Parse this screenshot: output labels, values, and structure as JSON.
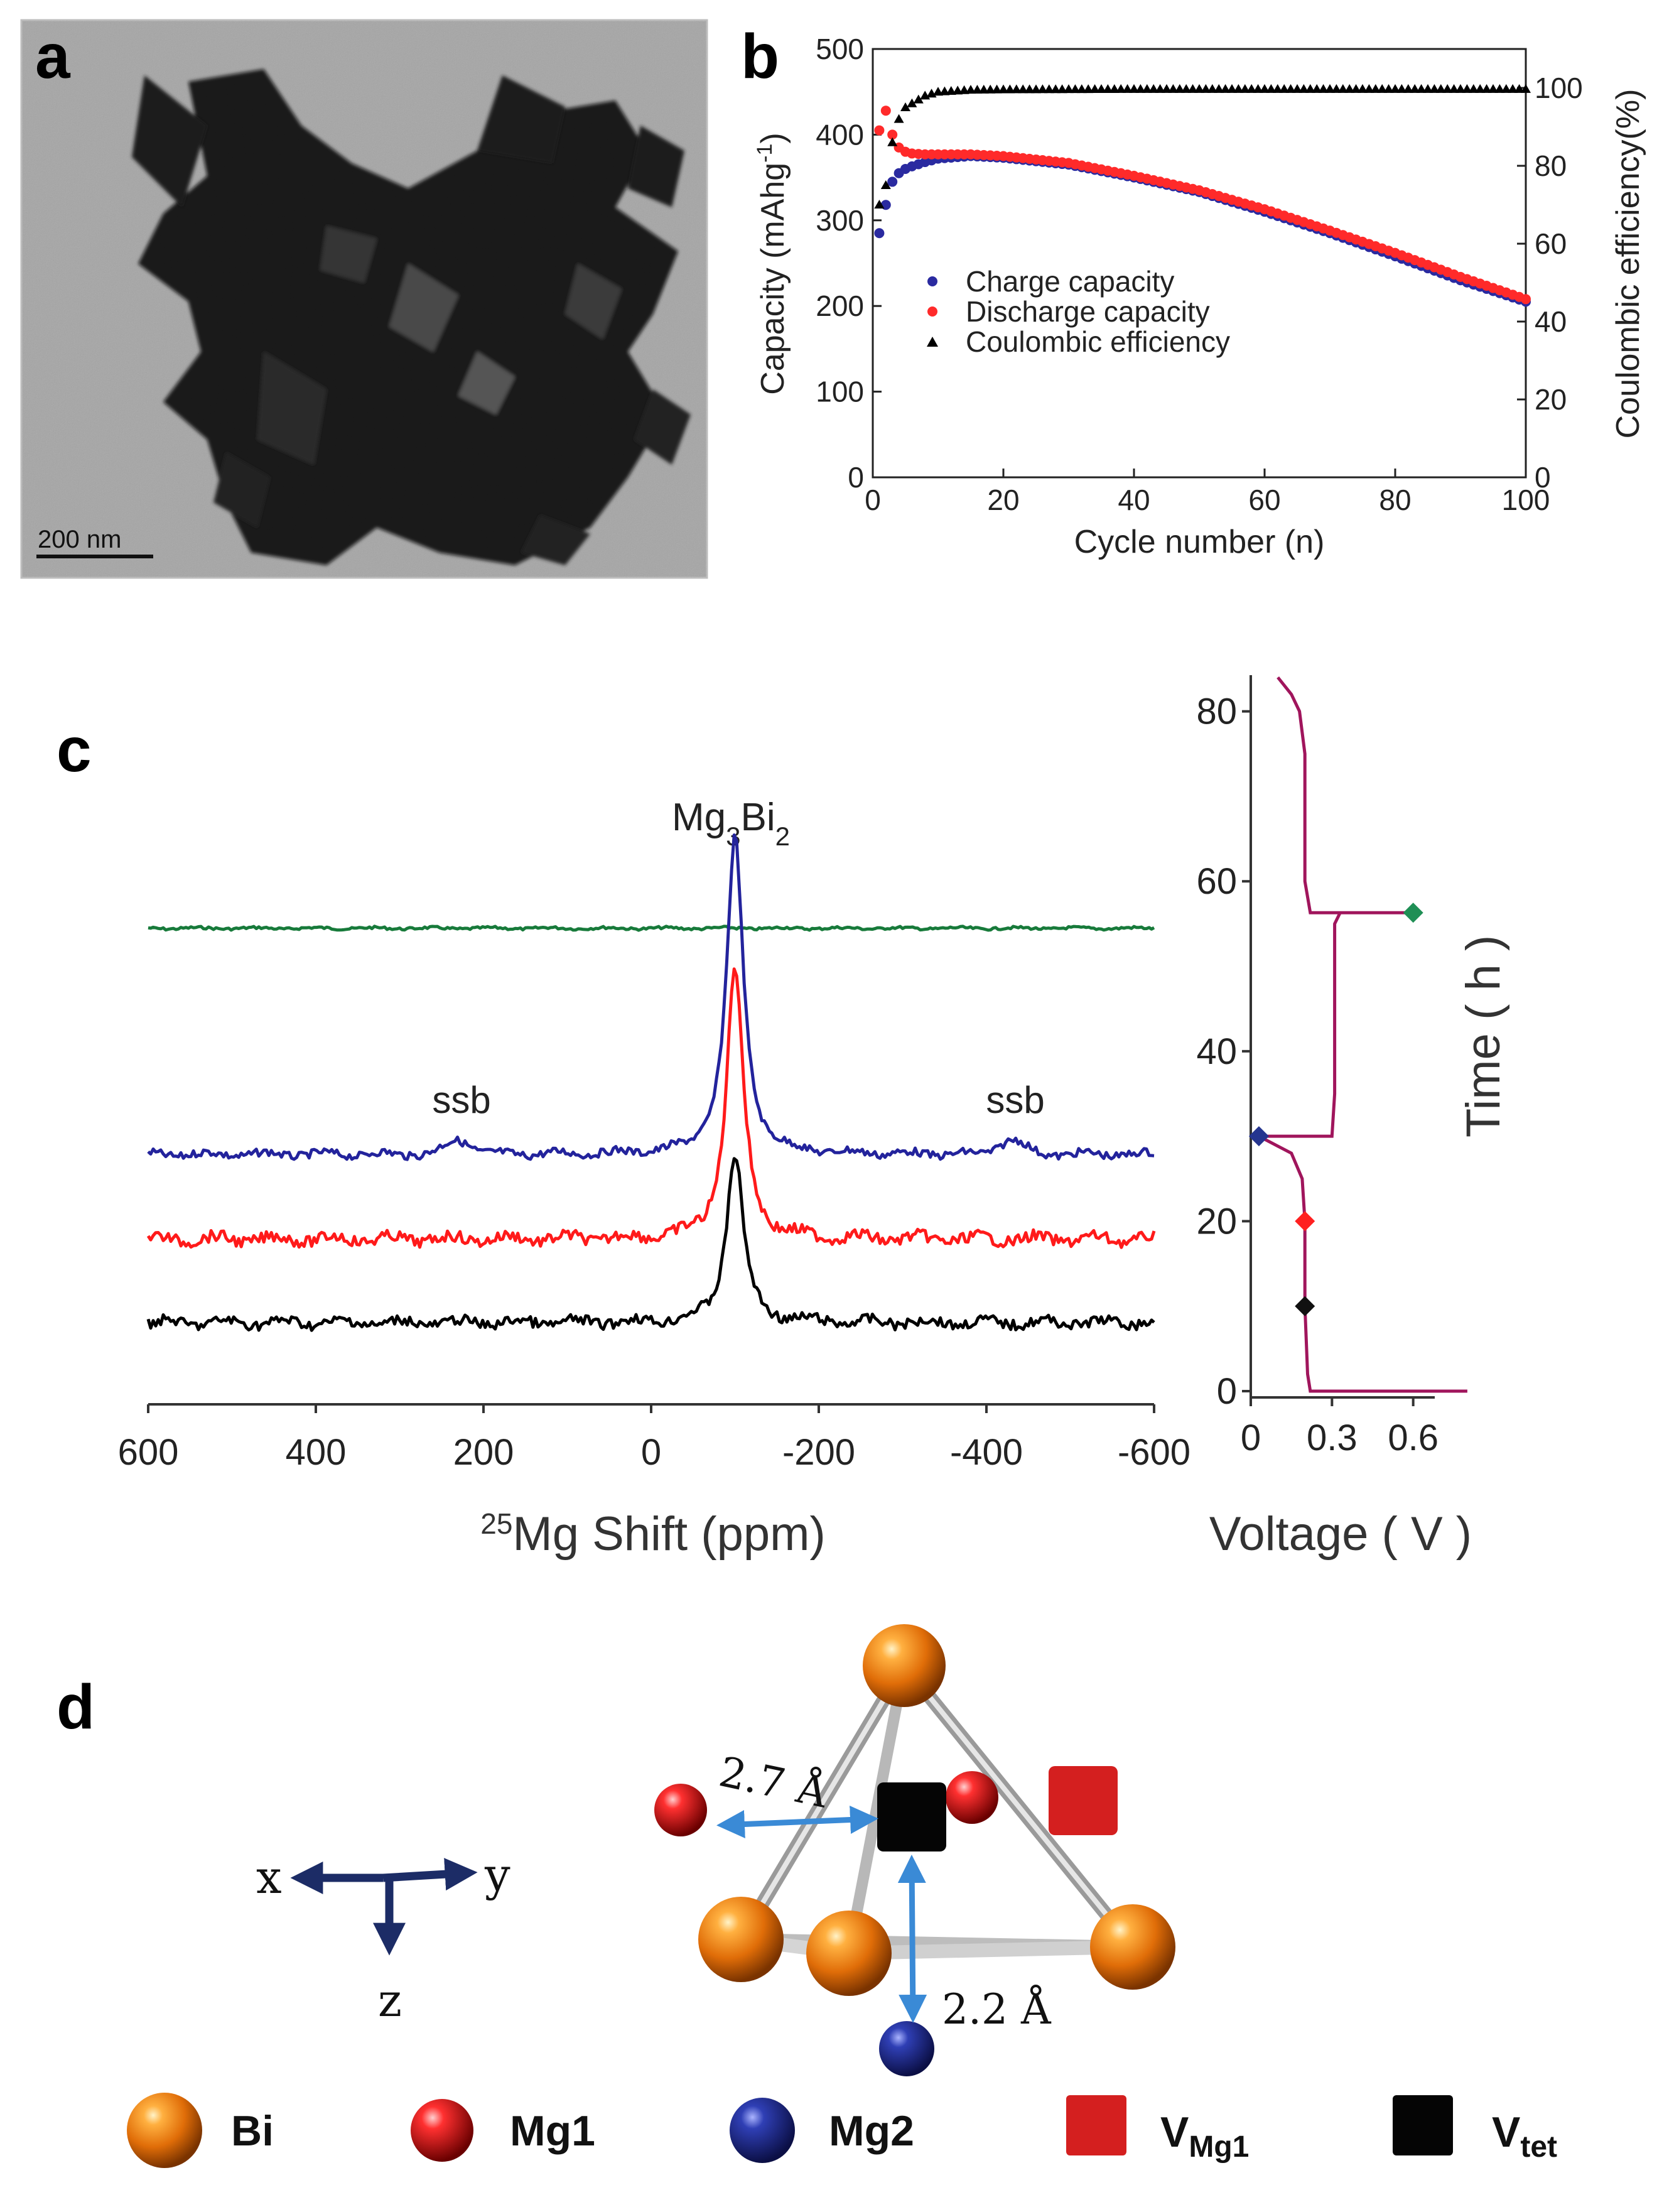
{
  "panels": {
    "a": {
      "label": "a",
      "scale_bar": "200 nm"
    },
    "b": {
      "label": "b"
    },
    "c": {
      "label": "c",
      "ssb_label": "ssb",
      "peak_label_main": "Mg",
      "peak_label_sub1": "3",
      "peak_label_mid": "Bi",
      "peak_label_sub2": "2"
    },
    "d": {
      "label": "d",
      "axis_x": "x",
      "axis_y": "y",
      "axis_z": "z",
      "dist_1": "2.7 Å",
      "dist_2": "2.2 Å",
      "legend": [
        {
          "label": "Bi",
          "color": "#e07a10"
        },
        {
          "label": "Mg1",
          "color": "#d81818"
        },
        {
          "label": "Mg2",
          "color": "#1e2f8a"
        },
        {
          "label": "V",
          "sub": "Mg1",
          "color": "#d41f1f"
        },
        {
          "label": "V",
          "sub": "tet",
          "color": "#000000"
        }
      ]
    }
  },
  "chart_data": [
    {
      "id": "b",
      "type": "scatter",
      "xlabel": "Cycle number (n)",
      "ylabel": "Capacity (mAhg",
      "ylabel_sup": "-1",
      "ylabel_end": ")",
      "y2label": "Coulombic efficiency(%)",
      "xlim": [
        0,
        100
      ],
      "ylim": [
        0,
        500
      ],
      "y2lim": [
        0,
        110
      ],
      "xticks": [
        "0",
        "20",
        "40",
        "60",
        "80",
        "100"
      ],
      "yticks": [
        "0",
        "100",
        "200",
        "300",
        "400",
        "500"
      ],
      "y2ticks": [
        "0",
        "20",
        "40",
        "60",
        "80",
        "100"
      ],
      "series": [
        {
          "name": "Charge capacity",
          "color": "#2a2aa0",
          "marker": "circle",
          "points": [
            [
              1,
              285
            ],
            [
              2,
              318
            ],
            [
              3,
              345
            ],
            [
              4,
              355
            ],
            [
              5,
              360
            ],
            [
              6,
              363
            ],
            [
              8,
              368
            ],
            [
              10,
              372
            ],
            [
              15,
              375
            ],
            [
              20,
              373
            ],
            [
              30,
              365
            ],
            [
              40,
              350
            ],
            [
              50,
              333
            ],
            [
              60,
              310
            ],
            [
              70,
              285
            ],
            [
              80,
              258
            ],
            [
              90,
              230
            ],
            [
              100,
              205
            ]
          ]
        },
        {
          "name": "Discharge capacity",
          "color": "#ff2a2a",
          "marker": "circle",
          "points": [
            [
              1,
              405
            ],
            [
              2,
              428
            ],
            [
              3,
              400
            ],
            [
              4,
              385
            ],
            [
              5,
              380
            ],
            [
              6,
              378
            ],
            [
              8,
              377
            ],
            [
              10,
              377
            ],
            [
              15,
              377
            ],
            [
              20,
              375
            ],
            [
              30,
              367
            ],
            [
              40,
              352
            ],
            [
              50,
              335
            ],
            [
              60,
              313
            ],
            [
              70,
              288
            ],
            [
              80,
              262
            ],
            [
              90,
              234
            ],
            [
              100,
              208
            ]
          ]
        },
        {
          "name": "Coulombic efficiency",
          "color": "#000000",
          "marker": "triangle",
          "points": [
            [
              1,
              70
            ],
            [
              2,
              75
            ],
            [
              3,
              86
            ],
            [
              4,
              92
            ],
            [
              5,
              95
            ],
            [
              6,
              96
            ],
            [
              8,
              98
            ],
            [
              10,
              99
            ],
            [
              15,
              99.5
            ],
            [
              20,
              99.6
            ],
            [
              40,
              99.7
            ],
            [
              60,
              99.7
            ],
            [
              80,
              99.7
            ],
            [
              100,
              99.7
            ]
          ]
        }
      ]
    },
    {
      "id": "c-nmr",
      "type": "line",
      "xlabel_sup": "25",
      "xlabel": "Mg Shift (ppm)",
      "xlim": [
        600,
        -600
      ],
      "xticks": [
        "600",
        "400",
        "200",
        "0",
        "-200",
        "-400",
        "-600"
      ],
      "series": [
        {
          "name": "green",
          "color": "#177a3a",
          "peak_height": 0,
          "noise": 2,
          "ssb": false
        },
        {
          "name": "blue",
          "color": "#23239c",
          "peak_height": 505,
          "noise": 6,
          "ssb": true
        },
        {
          "name": "red",
          "color": "#ff1a1a",
          "peak_height": 435,
          "noise": 9,
          "ssb": false
        },
        {
          "name": "black",
          "color": "#000000",
          "peak_height": 270,
          "noise": 8,
          "ssb": false
        }
      ],
      "peak_position": -100,
      "ssb_positions": [
        230,
        -430
      ]
    },
    {
      "id": "c-voltage",
      "type": "line",
      "xlabel": "Voltage ( V )",
      "ylabel": "Time ( h )",
      "xlim": [
        0,
        0.9
      ],
      "ylim": [
        0,
        85
      ],
      "xticks": [
        "0",
        "0.3",
        "0.6"
      ],
      "yticks": [
        "0",
        "20",
        "40",
        "60",
        "80"
      ],
      "curve_color": "#a0155c",
      "profile": [
        [
          0.8,
          0
        ],
        [
          0.22,
          0
        ],
        [
          0.21,
          2
        ],
        [
          0.2,
          10
        ],
        [
          0.2,
          20
        ],
        [
          0.19,
          25
        ],
        [
          0.15,
          28
        ],
        [
          0.03,
          30
        ],
        [
          0.3,
          30
        ],
        [
          0.31,
          35
        ],
        [
          0.31,
          55
        ],
        [
          0.33,
          56.3
        ],
        [
          0.6,
          56.3
        ],
        [
          0.22,
          56.3
        ],
        [
          0.2,
          60
        ],
        [
          0.2,
          75
        ],
        [
          0.18,
          80
        ],
        [
          0.15,
          82
        ],
        [
          0.1,
          84
        ]
      ],
      "markers": [
        {
          "v": 0.2,
          "t": 10,
          "color": "#111111"
        },
        {
          "v": 0.2,
          "t": 20,
          "color": "#ff2020"
        },
        {
          "v": 0.03,
          "t": 30,
          "color": "#25358f"
        },
        {
          "v": 0.6,
          "t": 56.3,
          "color": "#1f8f55"
        }
      ]
    }
  ]
}
